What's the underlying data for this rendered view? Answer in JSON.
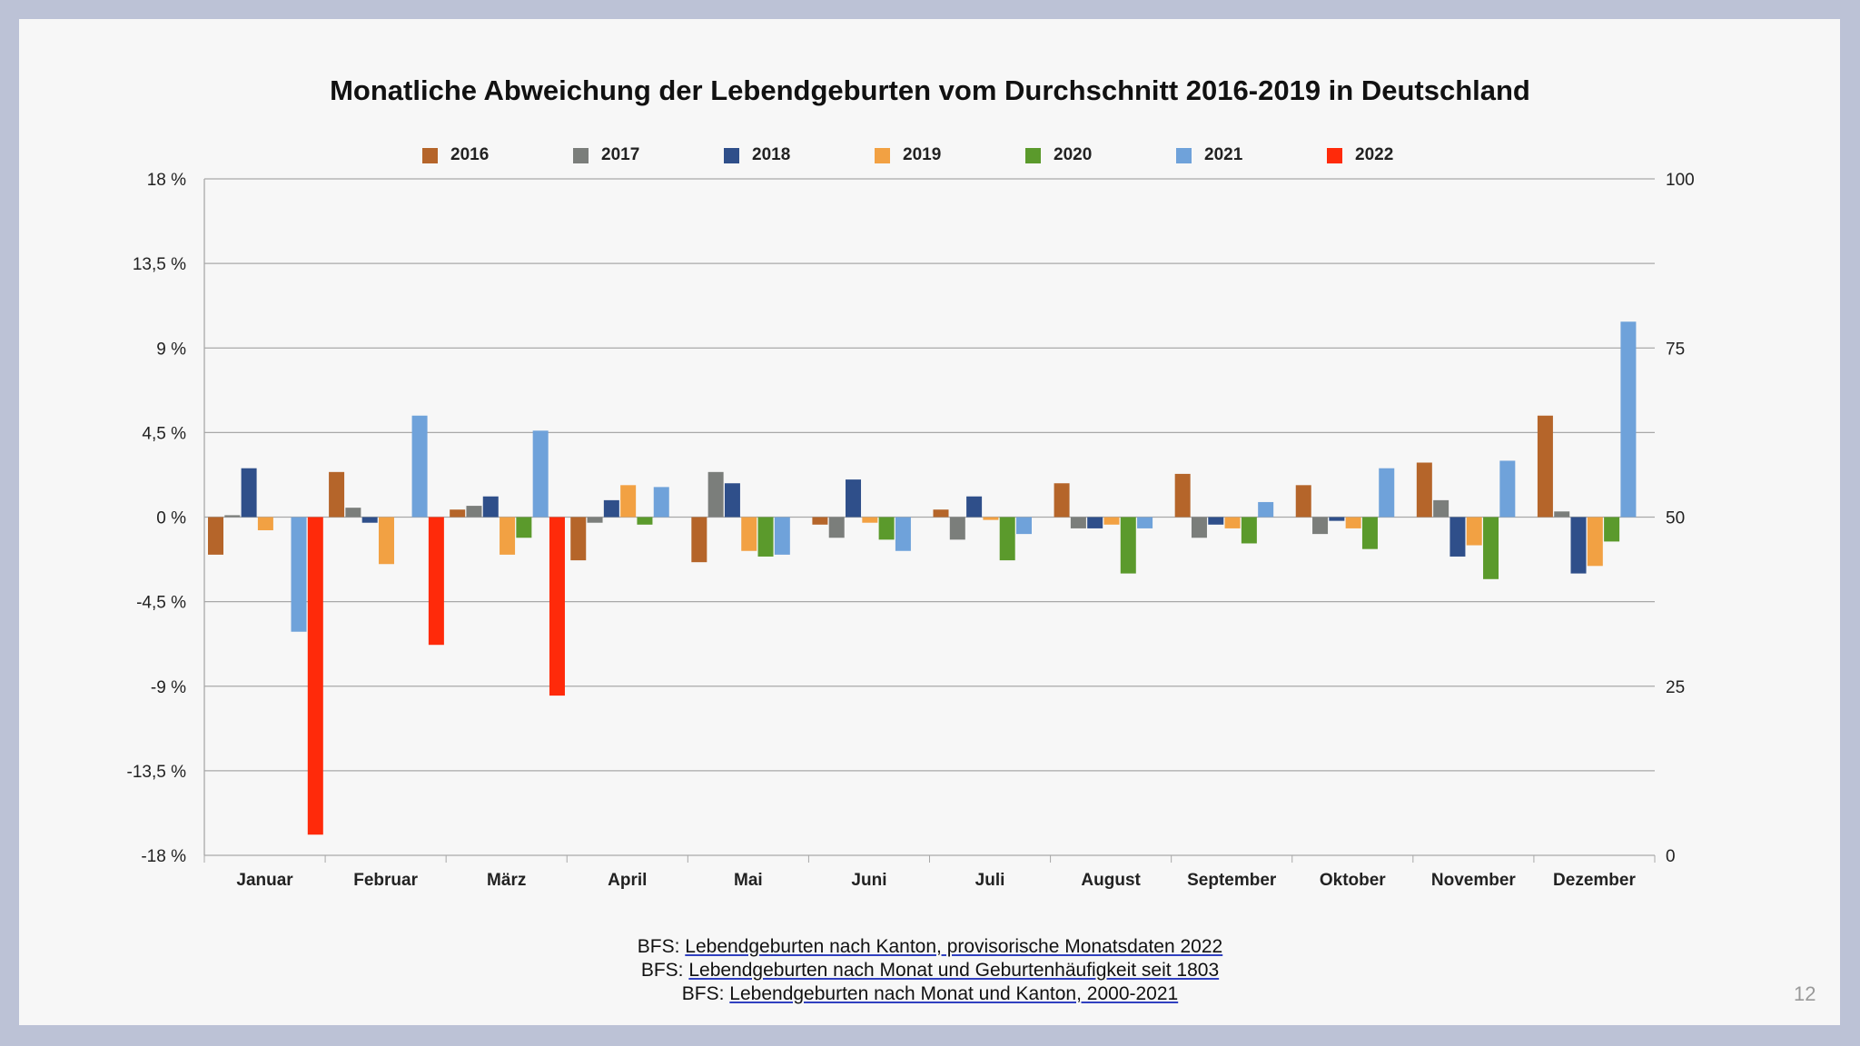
{
  "chart_data": {
    "type": "bar",
    "title": "Monatliche Abweichung der Lebendgeburten vom Durchschnitt 2016-2019 in Deutschland",
    "categories": [
      "Januar",
      "Februar",
      "März",
      "April",
      "Mai",
      "Juni",
      "Juli",
      "August",
      "September",
      "Oktober",
      "November",
      "Dezember"
    ],
    "ylim": [
      -18,
      18
    ],
    "yticks": [
      "18 %",
      "13,5 %",
      "9 %",
      "4,5 %",
      "0 %",
      "-4,5 %",
      "-9 %",
      "-13,5 %",
      "-18 %"
    ],
    "ytick_values": [
      18,
      13.5,
      9,
      4.5,
      0,
      -4.5,
      -9,
      -13.5,
      -18
    ],
    "y2lim": [
      0,
      100
    ],
    "y2ticks": [
      "100",
      "75",
      "50",
      "25",
      "0"
    ],
    "y2tick_values": [
      100,
      75,
      50,
      25,
      0
    ],
    "grid": true,
    "legend_position": "top",
    "series": [
      {
        "name": "2016",
        "color": "#b5652a",
        "values": [
          -2.0,
          2.4,
          0.4,
          -2.3,
          -2.4,
          -0.4,
          0.4,
          1.8,
          2.3,
          1.7,
          2.9,
          5.4
        ]
      },
      {
        "name": "2017",
        "color": "#7b7e7b",
        "values": [
          0.1,
          0.5,
          0.6,
          -0.3,
          2.4,
          -1.1,
          -1.2,
          -0.6,
          -1.1,
          -0.9,
          0.9,
          0.3
        ]
      },
      {
        "name": "2018",
        "color": "#2f4f8a",
        "values": [
          2.6,
          -0.3,
          1.1,
          0.9,
          1.8,
          2.0,
          1.1,
          -0.6,
          -0.4,
          -0.2,
          -2.1,
          -3.0
        ]
      },
      {
        "name": "2019",
        "color": "#f2a143",
        "values": [
          -0.7,
          -2.5,
          -2.0,
          1.7,
          -1.8,
          -0.3,
          -0.15,
          -0.4,
          -0.6,
          -0.6,
          -1.5,
          -2.6
        ]
      },
      {
        "name": "2020",
        "color": "#5b9a2c",
        "values": [
          0,
          0,
          -1.1,
          -0.4,
          -2.1,
          -1.2,
          -2.3,
          -3.0,
          -1.4,
          -1.7,
          -3.3,
          -1.3
        ]
      },
      {
        "name": "2021",
        "color": "#6fa2da",
        "values": [
          -6.1,
          5.4,
          4.6,
          1.6,
          -2.0,
          -1.8,
          -0.9,
          -0.6,
          0.8,
          2.6,
          3.0,
          10.4
        ]
      },
      {
        "name": "2022",
        "color": "#ff2a0a",
        "values": [
          -16.9,
          -6.8,
          -9.5,
          null,
          null,
          null,
          null,
          null,
          null,
          null,
          null,
          null
        ]
      }
    ]
  },
  "sources": [
    {
      "prefix": "BFS: ",
      "link": "Lebendgeburten nach Kanton, provisorische Monatsdaten 2022"
    },
    {
      "prefix": "BFS: ",
      "link": "Lebendgeburten nach Monat und Geburtenhäufigkeit seit 1803"
    },
    {
      "prefix": "BFS: ",
      "link": "Lebendgeburten nach Monat und Kanton, 2000-2021"
    }
  ],
  "page_number": "12"
}
